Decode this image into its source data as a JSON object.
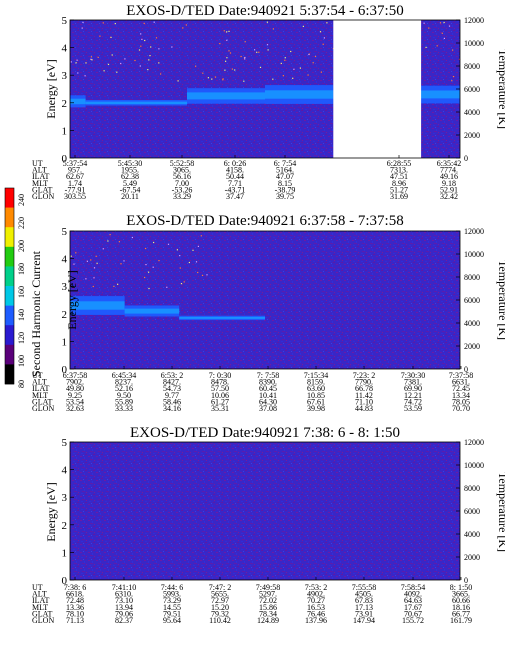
{
  "colorbar": {
    "label": "Second Harmonic Current",
    "ticks": [
      "240",
      "220",
      "200",
      "180",
      "160",
      "140",
      "120",
      "100",
      "80"
    ],
    "colors": [
      "#000000",
      "#5a007a",
      "#2a1ad0",
      "#1e5cff",
      "#00c8e6",
      "#00d08a",
      "#22cc11",
      "#f0f000",
      "#ff8a00",
      "#ff0000"
    ]
  },
  "chart_data": [
    {
      "type": "heatmap",
      "title": "EXOS-D/TED   Date:940921   5:37:54 - 6:37:50",
      "ylabel": "Energy [eV]",
      "ylabel2": "Temperature [K]",
      "ylim": [
        0,
        5
      ],
      "ylim2": [
        0,
        12000
      ],
      "yticks": [
        "0",
        "1",
        "2",
        "3",
        "4",
        "5"
      ],
      "yticks2": [
        "0",
        "2000",
        "4000",
        "6000",
        "8000",
        "10000",
        "12000"
      ],
      "data_gap": [
        0.675,
        0.9
      ],
      "band": [
        {
          "x0": 0.0,
          "x1": 0.04,
          "e": 2.05,
          "w": 0.22
        },
        {
          "x0": 0.04,
          "x1": 0.3,
          "e": 2.0,
          "w": 0.1
        },
        {
          "x0": 0.3,
          "x1": 0.5,
          "e": 2.25,
          "w": 0.28
        },
        {
          "x0": 0.5,
          "x1": 0.675,
          "e": 2.3,
          "w": 0.34
        },
        {
          "x0": 0.9,
          "x1": 1.0,
          "e": 2.3,
          "w": 0.32
        }
      ],
      "ephem_labels": [
        "UT",
        "ALT",
        "ILAT",
        "MLT",
        "GLAT",
        "GLON"
      ],
      "ephem": [
        [
          "5:37:54",
          "957.",
          "62.67",
          "1.74",
          "-77.91",
          "303.55"
        ],
        [
          "5:45:30",
          "1955.",
          "62.38",
          "5.49",
          "-67.54",
          "20.11"
        ],
        [
          "5:52:58",
          "3065.",
          "56.16",
          "7.00",
          "-53.26",
          "33.29"
        ],
        [
          "6: 0:26",
          "4158.",
          "50.44",
          "7.71",
          "-43.71",
          "37.47"
        ],
        [
          "6: 7:54",
          "5164.",
          "47.07",
          "8.15",
          "-38.79",
          "39.75"
        ],
        [
          "6:28:55",
          "7313.",
          "47.51",
          "8.96",
          "51.27",
          "31.69"
        ],
        [
          "6:35:42",
          "7774.",
          "49.16",
          "9.18",
          "52.91",
          "32.42"
        ]
      ]
    },
    {
      "type": "heatmap",
      "title": "EXOS-D/TED   Date:940921   6:37:58 - 7:37:58",
      "ylabel": "Energy [eV]",
      "ylabel2": "Temperature [K]",
      "ylim": [
        0,
        5
      ],
      "ylim2": [
        0,
        12000
      ],
      "yticks": [
        "0",
        "1",
        "2",
        "3",
        "4",
        "5"
      ],
      "yticks2": [
        "0",
        "2000",
        "4000",
        "6000",
        "8000",
        "10000",
        "12000"
      ],
      "band": [
        {
          "x0": 0.0,
          "x1": 0.14,
          "e": 2.3,
          "w": 0.34
        },
        {
          "x0": 0.14,
          "x1": 0.28,
          "e": 2.1,
          "w": 0.2
        },
        {
          "x0": 0.28,
          "x1": 0.5,
          "e": 1.85,
          "w": 0.08
        }
      ],
      "ephem_labels": [
        "UT",
        "ALT",
        "ILAT",
        "MLT",
        "GLAT",
        "GLON"
      ],
      "ephem": [
        [
          "6:37:58",
          "7902.",
          "49.80",
          "9.25",
          "53.54",
          "32.63"
        ],
        [
          "6:45:34",
          "8237.",
          "52.16",
          "9.50",
          "55.89",
          "33.33"
        ],
        [
          "6:53: 2",
          "8427.",
          "54.73",
          "9.77",
          "58.46",
          "34.16"
        ],
        [
          "7: 0:30",
          "8478.",
          "57.50",
          "10.06",
          "61.27",
          "35.31"
        ],
        [
          "7: 7:58",
          "8390.",
          "60.45",
          "10.41",
          "64.30",
          "37.08"
        ],
        [
          "7:15:34",
          "8159.",
          "63.60",
          "10.85",
          "67.61",
          "39.98"
        ],
        [
          "7:23: 2",
          "7790.",
          "66.78",
          "11.42",
          "71.10",
          "44.83"
        ],
        [
          "7:30:30",
          "7381.",
          "69.90",
          "12.21",
          "74.72",
          "53.59"
        ],
        [
          "7:37:58",
          "6631.",
          "72.45",
          "13.34",
          "78.05",
          "70.70"
        ]
      ]
    },
    {
      "type": "heatmap",
      "title": "EXOS-D/TED   Date:940921   7:38: 6 -  8: 1:50",
      "ylabel": "Energy [eV]",
      "ylabel2": "Temperature [K]",
      "ylim": [
        0,
        5
      ],
      "ylim2": [
        0,
        12000
      ],
      "yticks": [
        "0",
        "1",
        "2",
        "3",
        "4",
        "5"
      ],
      "yticks2": [
        "0",
        "2000",
        "4000",
        "6000",
        "8000",
        "10000",
        "12000"
      ],
      "band": [],
      "ephem_labels": [
        "UT",
        "ALT",
        "ILAT",
        "MLT",
        "GLAT",
        "GLON"
      ],
      "ephem": [
        [
          "7:38: 6",
          "6618.",
          "72.48",
          "13.36",
          "78.10",
          "71.13"
        ],
        [
          "7:41:10",
          "6310.",
          "73.10",
          "13.94",
          "79.06",
          "82.37"
        ],
        [
          "7:44: 6",
          "5993.",
          "73.29",
          "14.55",
          "79.51",
          "95.64"
        ],
        [
          "7:47: 2",
          "5655.",
          "72.97",
          "15.20",
          "79.32",
          "110.42"
        ],
        [
          "7:49:58",
          "5297.",
          "72.02",
          "15.86",
          "78.34",
          "124.89"
        ],
        [
          "7:53: 2",
          "4902.",
          "70.27",
          "16.53",
          "76.46",
          "137.96"
        ],
        [
          "7:55:58",
          "4505.",
          "67.83",
          "17.13",
          "73.91",
          "147.94"
        ],
        [
          "7:58:54",
          "4092.",
          "64.63",
          "17.67",
          "70.67",
          "155.72"
        ],
        [
          "8: 1:50",
          "3665.",
          "60.66",
          "18.16",
          "66.77",
          "161.79"
        ]
      ]
    }
  ]
}
